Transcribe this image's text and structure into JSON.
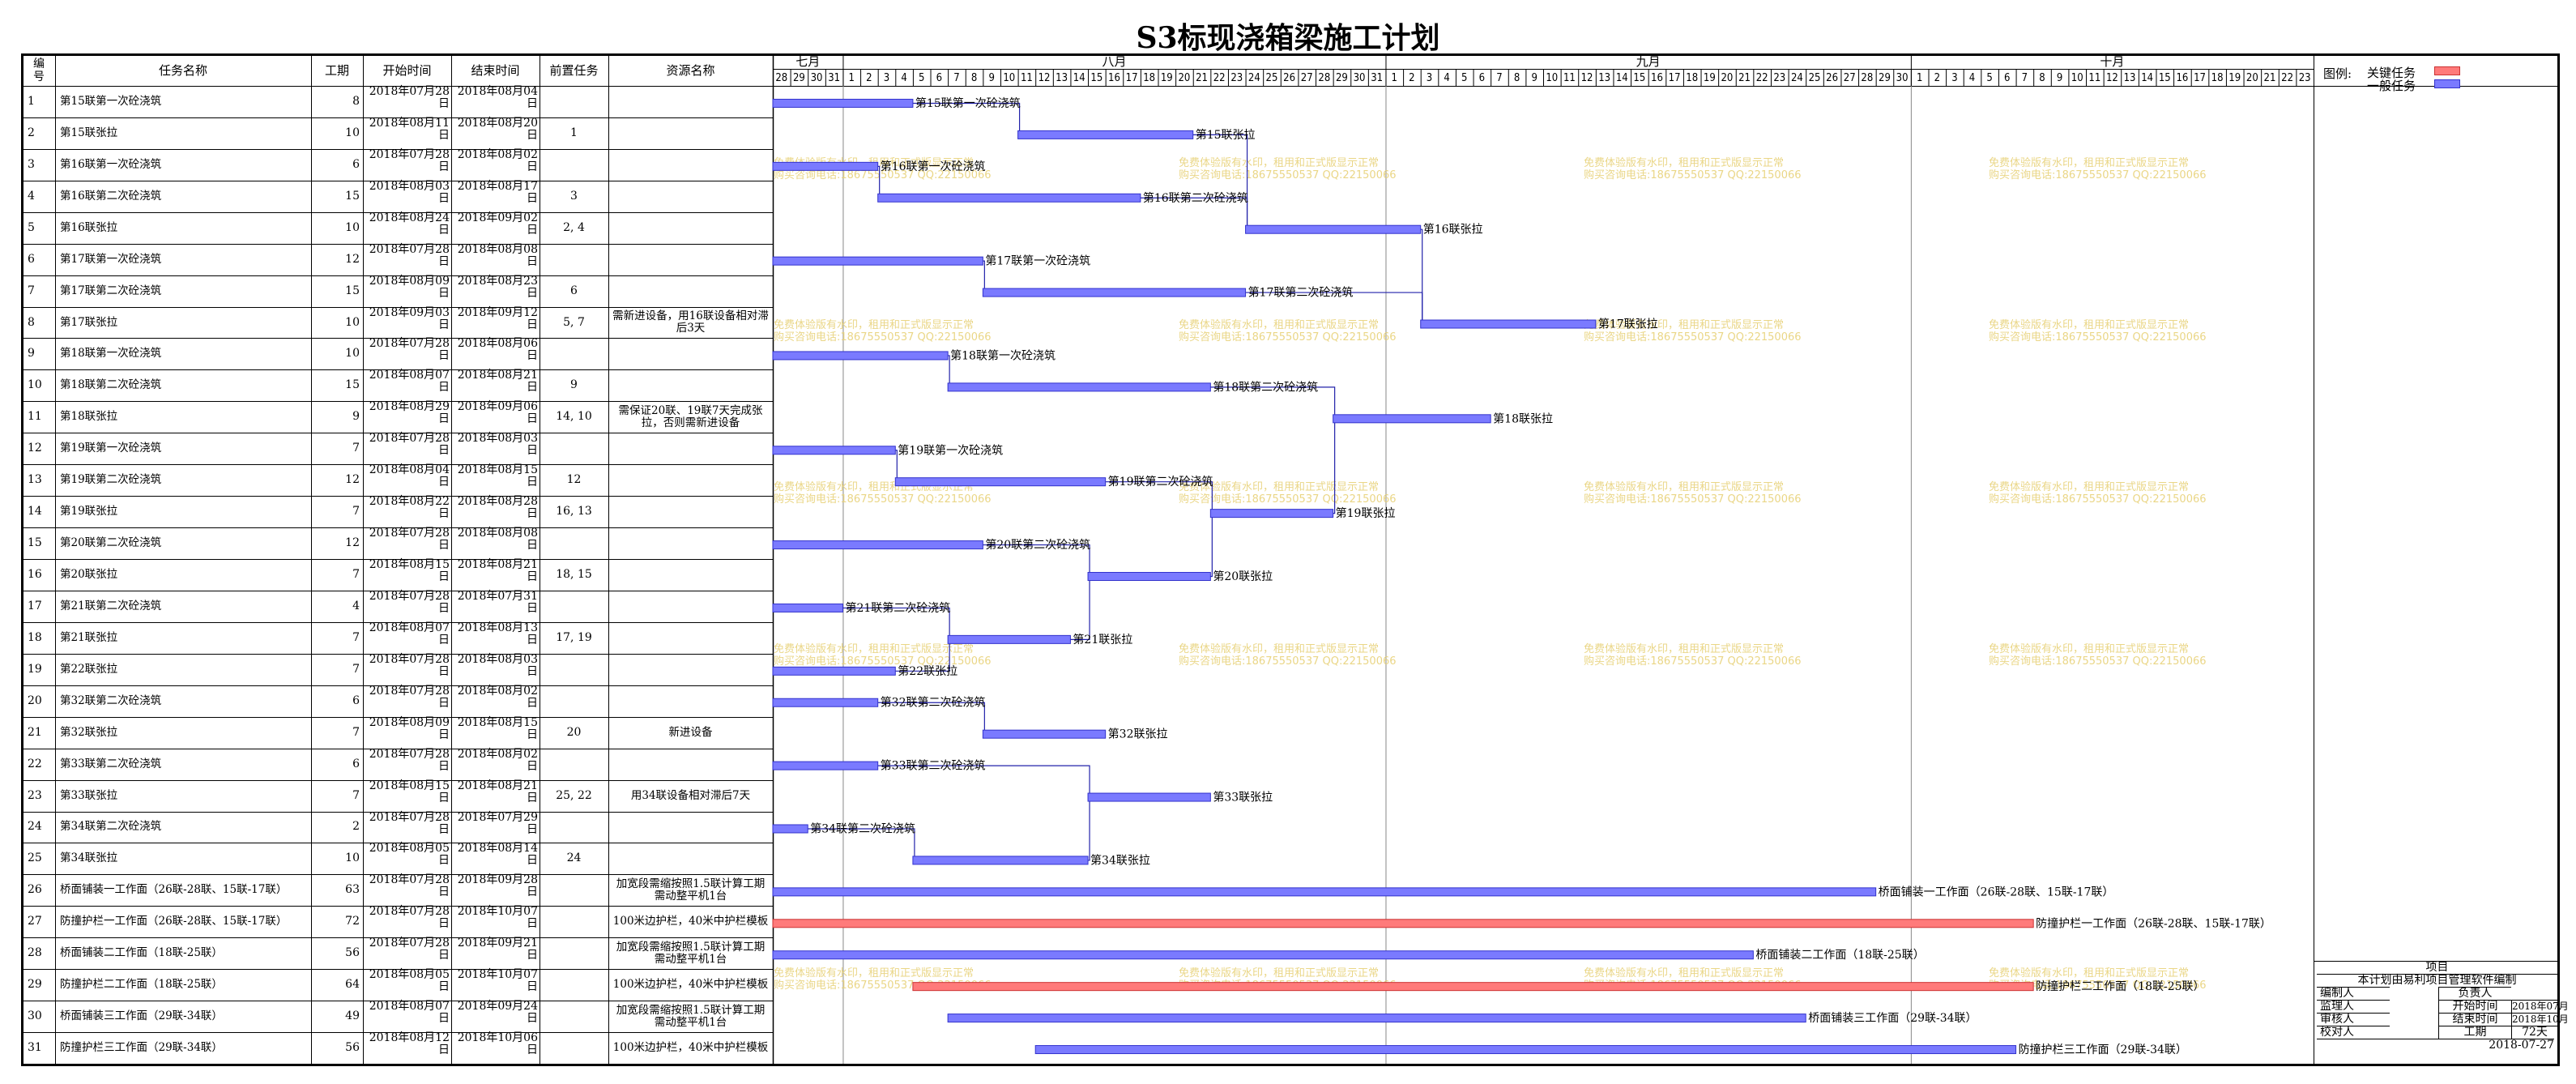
{
  "title": "S3标现浇箱梁施工计划",
  "headers": {
    "id": "编号",
    "name": "任务名称",
    "duration": "工期",
    "start": "开始时间",
    "end": "结束时间",
    "pred": "前置任务",
    "resource": "资源名称"
  },
  "legend": {
    "label": "图例:",
    "critical": "关键任务",
    "normal": "一般任务",
    "critical_color": "#FF7A7A",
    "normal_color": "#7A7AFF"
  },
  "watermark": {
    "line1": "免费体验版有水印，租用和正式版显示正常",
    "line2": "购买咨询电话:18675550537 QQ:22150066",
    "color": "#E8D27A"
  },
  "info_panel": {
    "project_label": "项目",
    "note": "本计划由易利项目管理软件编制",
    "rows": [
      {
        "l1": "编制人",
        "l2": "负责人",
        "v": ""
      },
      {
        "l1": "监理人",
        "l2": "开始时间",
        "v": "2018年07月"
      },
      {
        "l1": "审核人",
        "l2": "结束时间",
        "v": "2018年10月"
      },
      {
        "l1": "校对人",
        "l2": "工期",
        "v": "72天"
      }
    ],
    "start_val": "2018年07月",
    "end_val": "2018年10月",
    "dur_val": "72天",
    "date": "2018-07-27"
  },
  "chart_data": {
    "type": "gantt",
    "title": "S3标现浇箱梁施工计划",
    "timeline": {
      "months": [
        {
          "label": "七月",
          "days": [
            28,
            29,
            30,
            31
          ]
        },
        {
          "label": "八月",
          "days": [
            1,
            2,
            3,
            4,
            5,
            6,
            7,
            8,
            9,
            10,
            11,
            12,
            13,
            14,
            15,
            16,
            17,
            18,
            19,
            20,
            21,
            22,
            23,
            24,
            25,
            26,
            27,
            28,
            29,
            30,
            31
          ]
        },
        {
          "label": "九月",
          "days": [
            1,
            2,
            3,
            4,
            5,
            6,
            7,
            8,
            9,
            10,
            11,
            12,
            13,
            14,
            15,
            16,
            17,
            18,
            19,
            20,
            21,
            22,
            23,
            24,
            25,
            26,
            27,
            28,
            29,
            30
          ]
        },
        {
          "label": "十月",
          "days": [
            1,
            2,
            3,
            4,
            5,
            6,
            7,
            8,
            9,
            10,
            11,
            12,
            13,
            14,
            15,
            16,
            17,
            18,
            19,
            20,
            21,
            22,
            23
          ]
        }
      ],
      "start": "2018-07-28",
      "end": "2018-10-23"
    },
    "tasks": [
      {
        "id": "1",
        "name": "第15联第一次砼浇筑",
        "duration": "8",
        "start": "2018年07月28日",
        "end": "2018年08月04日",
        "pred": "",
        "resource": "",
        "s": "2018-07-28",
        "e": "2018-08-04",
        "critical": false,
        "bar_label": "第15联第一次砼浇筑"
      },
      {
        "id": "2",
        "name": "第15联张拉",
        "duration": "10",
        "start": "2018年08月11日",
        "end": "2018年08月20日",
        "pred": "1",
        "resource": "",
        "s": "2018-08-11",
        "e": "2018-08-20",
        "critical": false,
        "bar_label": "第15联张拉"
      },
      {
        "id": "3",
        "name": "第16联第一次砼浇筑",
        "duration": "6",
        "start": "2018年07月28日",
        "end": "2018年08月02日",
        "pred": "",
        "resource": "",
        "s": "2018-07-28",
        "e": "2018-08-02",
        "critical": false,
        "bar_label": "第16联第一次砼浇筑"
      },
      {
        "id": "4",
        "name": "第16联第二次砼浇筑",
        "duration": "15",
        "start": "2018年08月03日",
        "end": "2018年08月17日",
        "pred": "3",
        "resource": "",
        "s": "2018-08-03",
        "e": "2018-08-17",
        "critical": false,
        "bar_label": "第16联第二次砼浇筑"
      },
      {
        "id": "5",
        "name": "第16联张拉",
        "duration": "10",
        "start": "2018年08月24日",
        "end": "2018年09月02日",
        "pred": "2, 4",
        "resource": "",
        "s": "2018-08-24",
        "e": "2018-09-02",
        "critical": false,
        "bar_label": "第16联张拉"
      },
      {
        "id": "6",
        "name": "第17联第一次砼浇筑",
        "duration": "12",
        "start": "2018年07月28日",
        "end": "2018年08月08日",
        "pred": "",
        "resource": "",
        "s": "2018-07-28",
        "e": "2018-08-08",
        "critical": false,
        "bar_label": "第17联第一次砼浇筑"
      },
      {
        "id": "7",
        "name": "第17联第二次砼浇筑",
        "duration": "15",
        "start": "2018年08月09日",
        "end": "2018年08月23日",
        "pred": "6",
        "resource": "",
        "s": "2018-08-09",
        "e": "2018-08-23",
        "critical": false,
        "bar_label": "第17联第二次砼浇筑"
      },
      {
        "id": "8",
        "name": "第17联张拉",
        "duration": "10",
        "start": "2018年09月03日",
        "end": "2018年09月12日",
        "pred": "5, 7",
        "resource": "需新进设备，用16联设备相对滞后3天",
        "s": "2018-09-03",
        "e": "2018-09-12",
        "critical": false,
        "bar_label": "第17联张拉"
      },
      {
        "id": "9",
        "name": "第18联第一次砼浇筑",
        "duration": "10",
        "start": "2018年07月28日",
        "end": "2018年08月06日",
        "pred": "",
        "resource": "",
        "s": "2018-07-28",
        "e": "2018-08-06",
        "critical": false,
        "bar_label": "第18联第一次砼浇筑"
      },
      {
        "id": "10",
        "name": "第18联第二次砼浇筑",
        "duration": "15",
        "start": "2018年08月07日",
        "end": "2018年08月21日",
        "pred": "9",
        "resource": "",
        "s": "2018-08-07",
        "e": "2018-08-21",
        "critical": false,
        "bar_label": "第18联第二次砼浇筑"
      },
      {
        "id": "11",
        "name": "第18联张拉",
        "duration": "9",
        "start": "2018年08月29日",
        "end": "2018年09月06日",
        "pred": "14, 10",
        "resource": "需保证20联、19联7天完成张拉，否则需新进设备",
        "s": "2018-08-29",
        "e": "2018-09-06",
        "critical": false,
        "bar_label": "第18联张拉"
      },
      {
        "id": "12",
        "name": "第19联第一次砼浇筑",
        "duration": "7",
        "start": "2018年07月28日",
        "end": "2018年08月03日",
        "pred": "",
        "resource": "",
        "s": "2018-07-28",
        "e": "2018-08-03",
        "critical": false,
        "bar_label": "第19联第一次砼浇筑"
      },
      {
        "id": "13",
        "name": "第19联第二次砼浇筑",
        "duration": "12",
        "start": "2018年08月04日",
        "end": "2018年08月15日",
        "pred": "12",
        "resource": "",
        "s": "2018-08-04",
        "e": "2018-08-15",
        "critical": false,
        "bar_label": "第19联第二次砼浇筑"
      },
      {
        "id": "14",
        "name": "第19联张拉",
        "duration": "7",
        "start": "2018年08月22日",
        "end": "2018年08月28日",
        "pred": "16, 13",
        "resource": "",
        "s": "2018-08-22",
        "e": "2018-08-28",
        "critical": false,
        "bar_label": "第19联张拉"
      },
      {
        "id": "15",
        "name": "第20联第二次砼浇筑",
        "duration": "12",
        "start": "2018年07月28日",
        "end": "2018年08月08日",
        "pred": "",
        "resource": "",
        "s": "2018-07-28",
        "e": "2018-08-08",
        "critical": false,
        "bar_label": "第20联第二次砼浇筑"
      },
      {
        "id": "16",
        "name": "第20联张拉",
        "duration": "7",
        "start": "2018年08月15日",
        "end": "2018年08月21日",
        "pred": "18, 15",
        "resource": "",
        "s": "2018-08-15",
        "e": "2018-08-21",
        "critical": false,
        "bar_label": "第20联张拉"
      },
      {
        "id": "17",
        "name": "第21联第二次砼浇筑",
        "duration": "4",
        "start": "2018年07月28日",
        "end": "2018年07月31日",
        "pred": "",
        "resource": "",
        "s": "2018-07-28",
        "e": "2018-07-31",
        "critical": false,
        "bar_label": "第21联第二次砼浇筑"
      },
      {
        "id": "18",
        "name": "第21联张拉",
        "duration": "7",
        "start": "2018年08月07日",
        "end": "2018年08月13日",
        "pred": "17, 19",
        "resource": "",
        "s": "2018-08-07",
        "e": "2018-08-13",
        "critical": false,
        "bar_label": "第21联张拉"
      },
      {
        "id": "19",
        "name": "第22联张拉",
        "duration": "7",
        "start": "2018年07月28日",
        "end": "2018年08月03日",
        "pred": "",
        "resource": "",
        "s": "2018-07-28",
        "e": "2018-08-03",
        "critical": false,
        "bar_label": "第22联张拉"
      },
      {
        "id": "20",
        "name": "第32联第二次砼浇筑",
        "duration": "6",
        "start": "2018年07月28日",
        "end": "2018年08月02日",
        "pred": "",
        "resource": "",
        "s": "2018-07-28",
        "e": "2018-08-02",
        "critical": false,
        "bar_label": "第32联第二次砼浇筑"
      },
      {
        "id": "21",
        "name": "第32联张拉",
        "duration": "7",
        "start": "2018年08月09日",
        "end": "2018年08月15日",
        "pred": "20",
        "resource": "新进设备",
        "s": "2018-08-09",
        "e": "2018-08-15",
        "critical": false,
        "bar_label": "第32联张拉"
      },
      {
        "id": "22",
        "name": "第33联第二次砼浇筑",
        "duration": "6",
        "start": "2018年07月28日",
        "end": "2018年08月02日",
        "pred": "",
        "resource": "",
        "s": "2018-07-28",
        "e": "2018-08-02",
        "critical": false,
        "bar_label": "第33联第二次砼浇筑"
      },
      {
        "id": "23",
        "name": "第33联张拉",
        "duration": "7",
        "start": "2018年08月15日",
        "end": "2018年08月21日",
        "pred": "25, 22",
        "resource": "用34联设备相对滞后7天",
        "s": "2018-08-15",
        "e": "2018-08-21",
        "critical": false,
        "bar_label": "第33联张拉"
      },
      {
        "id": "24",
        "name": "第34联第二次砼浇筑",
        "duration": "2",
        "start": "2018年07月28日",
        "end": "2018年07月29日",
        "pred": "",
        "resource": "",
        "s": "2018-07-28",
        "e": "2018-07-29",
        "critical": false,
        "bar_label": "第34联第二次砼浇筑"
      },
      {
        "id": "25",
        "name": "第34联张拉",
        "duration": "10",
        "start": "2018年08月05日",
        "end": "2018年08月14日",
        "pred": "24",
        "resource": "",
        "s": "2018-08-05",
        "e": "2018-08-14",
        "critical": false,
        "bar_label": "第34联张拉"
      },
      {
        "id": "26",
        "name": "桥面铺装一工作面（26联-28联、15联-17联）",
        "duration": "63",
        "start": "2018年07月28日",
        "end": "2018年09月28日",
        "pred": "",
        "resource": "加宽段需缩按照1.5联计算工期需动整平机1台",
        "s": "2018-07-28",
        "e": "2018-09-28",
        "critical": false,
        "bar_label": "桥面铺装一工作面（26联-28联、15联-17联）"
      },
      {
        "id": "27",
        "name": "防撞护栏一工作面（26联-28联、15联-17联）",
        "duration": "72",
        "start": "2018年07月28日",
        "end": "2018年10月07日",
        "pred": "",
        "resource": "100米边护栏，40米中护栏模板",
        "s": "2018-07-28",
        "e": "2018-10-07",
        "critical": true,
        "bar_label": "防撞护栏一工作面（26联-28联、15联-17联）"
      },
      {
        "id": "28",
        "name": "桥面铺装二工作面（18联-25联）",
        "duration": "56",
        "start": "2018年07月28日",
        "end": "2018年09月21日",
        "pred": "",
        "resource": "加宽段需缩按照1.5联计算工期需动整平机1台",
        "s": "2018-07-28",
        "e": "2018-09-21",
        "critical": false,
        "bar_label": "桥面铺装二工作面（18联-25联）"
      },
      {
        "id": "29",
        "name": "防撞护栏二工作面（18联-25联）",
        "duration": "64",
        "start": "2018年08月05日",
        "end": "2018年10月07日",
        "pred": "",
        "resource": "100米边护栏，40米中护栏模板",
        "s": "2018-08-05",
        "e": "2018-10-07",
        "critical": true,
        "bar_label": "防撞护栏二工作面（18联-25联）"
      },
      {
        "id": "30",
        "name": "桥面铺装三工作面（29联-34联）",
        "duration": "49",
        "start": "2018年08月07日",
        "end": "2018年09月24日",
        "pred": "",
        "resource": "加宽段需缩按照1.5联计算工期需动整平机1台",
        "s": "2018-08-07",
        "e": "2018-09-24",
        "critical": false,
        "bar_label": "桥面铺装三工作面（29联-34联）"
      },
      {
        "id": "31",
        "name": "防撞护栏三工作面（29联-34联）",
        "duration": "56",
        "start": "2018年08月12日",
        "end": "2018年10月06日",
        "pred": "",
        "resource": "100米边护栏，40米中护栏模板",
        "s": "2018-08-12",
        "e": "2018-10-06",
        "critical": false,
        "bar_label": "防撞护栏三工作面（29联-34联）"
      }
    ]
  }
}
